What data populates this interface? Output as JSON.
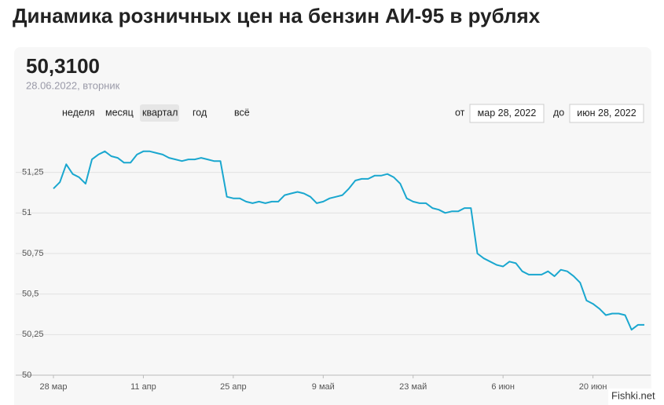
{
  "header": {
    "value": "50,3100",
    "date": "28.06.2022, вторник"
  },
  "controls": {
    "periods": [
      "неделя",
      "месяц",
      "квартал",
      "год",
      "всё"
    ],
    "selected": "квартал",
    "from_label": "от",
    "from": "мар 28, 2022",
    "to_label": "до",
    "to": "июн 28, 2022"
  },
  "watermark": "Fishki.net",
  "chart_data": {
    "type": "line",
    "title": "Динамика розничных цен на бензин АИ-95 в рублях",
    "color": "#1aa7cf",
    "grid": true,
    "categories": [
      "28 мар",
      null,
      null,
      null,
      null,
      null,
      null,
      null,
      null,
      null,
      null,
      null,
      null,
      null,
      "11 апр",
      null,
      null,
      null,
      null,
      null,
      null,
      null,
      null,
      null,
      null,
      null,
      null,
      null,
      "25 апр",
      null,
      null,
      null,
      null,
      null,
      null,
      null,
      null,
      null,
      null,
      null,
      null,
      null,
      "9 май",
      null,
      null,
      null,
      null,
      null,
      null,
      null,
      null,
      null,
      null,
      null,
      null,
      null,
      "23 май",
      null,
      null,
      null,
      null,
      null,
      null,
      null,
      null,
      null,
      null,
      null,
      null,
      null,
      "6 июн",
      null,
      null,
      null,
      null,
      null,
      null,
      null,
      null,
      null,
      null,
      null,
      null,
      null,
      "20 июн",
      null,
      null,
      null,
      null,
      null,
      null,
      null,
      null
    ],
    "values": [
      51.15,
      51.19,
      51.3,
      51.24,
      51.22,
      51.18,
      51.33,
      51.36,
      51.38,
      51.35,
      51.34,
      51.31,
      51.31,
      51.36,
      51.38,
      51.38,
      51.37,
      51.36,
      51.34,
      51.33,
      51.32,
      51.33,
      51.33,
      51.34,
      51.33,
      51.32,
      51.32,
      51.1,
      51.09,
      51.09,
      51.07,
      51.06,
      51.07,
      51.06,
      51.07,
      51.07,
      51.11,
      51.12,
      51.13,
      51.12,
      51.1,
      51.06,
      51.07,
      51.09,
      51.1,
      51.11,
      51.15,
      51.2,
      51.21,
      51.21,
      51.23,
      51.23,
      51.24,
      51.22,
      51.18,
      51.09,
      51.07,
      51.06,
      51.06,
      51.03,
      51.02,
      51.0,
      51.01,
      51.01,
      51.03,
      51.03,
      50.75,
      50.72,
      50.7,
      50.68,
      50.67,
      50.7,
      50.69,
      50.64,
      50.62,
      50.62,
      50.62,
      50.64,
      50.61,
      50.65,
      50.64,
      50.61,
      50.57,
      50.46,
      50.44,
      50.41,
      50.37,
      50.38,
      50.38,
      50.37,
      50.28,
      50.31,
      50.31
    ],
    "ylim": [
      50,
      51.5
    ],
    "yticks": [
      50,
      {
        "value": 50.25,
        "label": "50,25"
      },
      {
        "value": 50.5,
        "label": "50,5"
      },
      {
        "value": 50.75,
        "label": "50,75"
      },
      51,
      {
        "value": 51.25,
        "label": "51,25"
      }
    ]
  }
}
